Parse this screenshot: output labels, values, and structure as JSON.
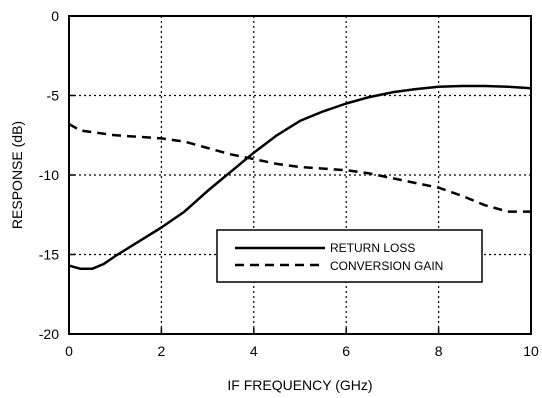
{
  "chart_data": {
    "type": "line",
    "xlabel": "IF FREQUENCY (GHz)",
    "ylabel": "RESPONSE (dB)",
    "xlim": [
      0,
      10
    ],
    "ylim": [
      -20,
      0
    ],
    "x_ticks": [
      0,
      2,
      4,
      6,
      8,
      10
    ],
    "y_ticks": [
      0,
      -5,
      -10,
      -15,
      -20
    ],
    "grid": true,
    "legend_position": "lower-right",
    "series": [
      {
        "name": "RETURN LOSS",
        "line_style": "solid",
        "x": [
          0,
          0.25,
          0.5,
          0.75,
          1,
          1.5,
          2,
          2.5,
          3,
          3.5,
          4,
          4.5,
          5,
          5.5,
          6,
          6.5,
          7,
          7.5,
          8,
          8.5,
          9,
          9.5,
          10
        ],
        "y": [
          -15.7,
          -15.9,
          -15.9,
          -15.6,
          -15.1,
          -14.2,
          -13.3,
          -12.3,
          -11.0,
          -9.8,
          -8.6,
          -7.5,
          -6.6,
          -6.0,
          -5.5,
          -5.1,
          -4.8,
          -4.6,
          -4.45,
          -4.4,
          -4.4,
          -4.45,
          -4.55
        ]
      },
      {
        "name": "CONVERSION GAIN",
        "line_style": "dashed",
        "x": [
          0,
          0.25,
          0.5,
          1,
          1.5,
          2,
          2.5,
          3,
          3.5,
          4,
          4.5,
          5,
          5.5,
          6,
          6.5,
          7,
          7.5,
          8,
          8.5,
          9,
          9.5,
          10
        ],
        "y": [
          -6.8,
          -7.2,
          -7.3,
          -7.5,
          -7.6,
          -7.7,
          -7.9,
          -8.3,
          -8.7,
          -9.0,
          -9.3,
          -9.5,
          -9.6,
          -9.7,
          -9.9,
          -10.2,
          -10.5,
          -10.8,
          -11.3,
          -11.9,
          -12.3,
          -12.3
        ]
      }
    ]
  }
}
